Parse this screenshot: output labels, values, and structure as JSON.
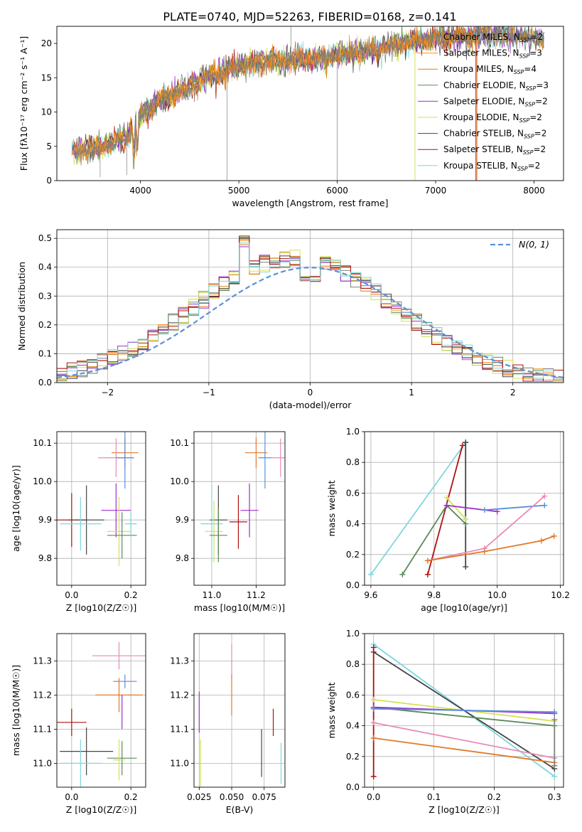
{
  "figure": {
    "title": "PLATE=0740, MJD=52263, FIBERID=0168, z=0.141"
  },
  "colors": {
    "chabrier_miles": "#7f7f7f",
    "salpeter_miles": "#ff8c1a",
    "kroupa_miles": "#d9821c",
    "chabrier_elodie": "#5a8a5a",
    "salpeter_elodie": "#9b30c8",
    "kroupa_elodie": "#d4e157",
    "chabrier_stelib": "#444444",
    "salpeter_stelib": "#b01010",
    "kroupa_stelib": "#7fd6dc",
    "normal_curve": "#5b8fd9",
    "miles_blue": "#5b8fd9",
    "pink": "#e88ab8",
    "orange": "#e07a2a"
  },
  "chart_data": [
    {
      "id": "spectrum",
      "type": "line",
      "xlabel": "wavelength [Angstrom, rest frame]",
      "ylabel": "Flux [fλ10⁻¹⁷ erg cm⁻² s⁻¹ A⁻¹]",
      "xlim": [
        3150,
        8300
      ],
      "ylim": [
        0,
        22.5
      ],
      "xticks": [
        4000,
        5000,
        6000,
        7000,
        8000
      ],
      "yticks": [
        0,
        5,
        10,
        15,
        20
      ],
      "legend_position": "top-right",
      "legend": [
        {
          "label": "Chabrier MILES, N",
          "sub": "SSP",
          "suffix": "=2",
          "color": "chabrier_miles"
        },
        {
          "label": "Salpeter MILES, N",
          "sub": "SSP",
          "suffix": "=3",
          "color": "salpeter_miles"
        },
        {
          "label": "Kroupa MILES, N",
          "sub": "SSP",
          "suffix": "=4",
          "color": "kroupa_miles"
        },
        {
          "label": "Chabrier ELODIE, N",
          "sub": "SSP",
          "suffix": "=3",
          "color": "chabrier_elodie"
        },
        {
          "label": "Salpeter ELODIE, N",
          "sub": "SSP",
          "suffix": "=2",
          "color": "salpeter_elodie"
        },
        {
          "label": "Kroupa ELODIE, N",
          "sub": "SSP",
          "suffix": "=2",
          "color": "kroupa_elodie"
        },
        {
          "label": "Chabrier STELIB, N",
          "sub": "SSP",
          "suffix": "=2",
          "color": "chabrier_stelib"
        },
        {
          "label": "Salpeter STELIB, N",
          "sub": "SSP",
          "suffix": "=2",
          "color": "salpeter_stelib"
        },
        {
          "label": "Kroupa STELIB, N",
          "sub": "SSP",
          "suffix": "=2",
          "color": "kroupa_stelib"
        }
      ],
      "continuum": [
        [
          3300,
          4.5
        ],
        [
          3500,
          4.6
        ],
        [
          3700,
          5.2
        ],
        [
          3900,
          7.0
        ],
        [
          4000,
          9.5
        ],
        [
          4200,
          11.5
        ],
        [
          4400,
          13.0
        ],
        [
          4600,
          14.5
        ],
        [
          4800,
          15.8
        ],
        [
          5000,
          16.8
        ],
        [
          5200,
          17.3
        ],
        [
          5400,
          17.5
        ],
        [
          5600,
          17.6
        ],
        [
          5800,
          17.9
        ],
        [
          6000,
          18.2
        ],
        [
          6200,
          18.6
        ],
        [
          6400,
          19.2
        ],
        [
          6600,
          19.8
        ],
        [
          6800,
          20.3
        ],
        [
          7000,
          20.8
        ],
        [
          7200,
          21.0
        ],
        [
          7400,
          21.2
        ],
        [
          7600,
          21.3
        ],
        [
          7800,
          21.2
        ],
        [
          8000,
          20.8
        ],
        [
          8100,
          20.5
        ]
      ]
    },
    {
      "id": "residuals",
      "type": "step",
      "xlabel": "(data-model)/error",
      "ylabel": "Normed distribution",
      "xlim": [
        -2.5,
        2.5
      ],
      "ylim": [
        0,
        0.53
      ],
      "xticks": [
        -2,
        -1,
        0,
        1,
        2
      ],
      "yticks": [
        0.0,
        0.1,
        0.2,
        0.3,
        0.4,
        0.5
      ],
      "legend_position": "top-right",
      "normal_label": "N(0, 1)",
      "bin_width": 0.1
    },
    {
      "id": "age_vs_Z",
      "type": "errorbar",
      "xlabel": "Z [log10(Z/Z☉)]",
      "ylabel": "age [log10(age/yr)]",
      "xlim": [
        -0.05,
        0.25
      ],
      "ylim": [
        9.73,
        10.13
      ],
      "xticks": [
        0.0,
        0.2
      ],
      "yticks": [
        9.8,
        9.9,
        10.0,
        10.1
      ],
      "points": [
        {
          "x": 0.18,
          "y": 10.075,
          "xerr": 0.045,
          "yerr": 0.04,
          "color": "orange"
        },
        {
          "x": 0.15,
          "y": 10.062,
          "xerr": 0.06,
          "yerr": 0.05,
          "color": "pink"
        },
        {
          "x": 0.18,
          "y": 10.062,
          "xerr": 0.03,
          "yerr": 0.08,
          "color": "miles_blue"
        },
        {
          "x": 0.0,
          "y": 9.9,
          "xerr": 0.05,
          "yerr": 0.07,
          "color": "salpeter_stelib"
        },
        {
          "x": 0.05,
          "y": 9.9,
          "xerr": 0.06,
          "yerr": 0.09,
          "color": "chabrier_stelib"
        },
        {
          "x": 0.03,
          "y": 9.89,
          "xerr": 0.07,
          "yerr": 0.07,
          "color": "kroupa_stelib"
        },
        {
          "x": 0.15,
          "y": 9.925,
          "xerr": 0.05,
          "yerr": 0.07,
          "color": "salpeter_elodie"
        },
        {
          "x": 0.16,
          "y": 9.87,
          "xerr": 0.04,
          "yerr": 0.09,
          "color": "kroupa_elodie"
        },
        {
          "x": 0.17,
          "y": 9.86,
          "xerr": 0.05,
          "yerr": 0.06,
          "color": "chabrier_elodie"
        },
        {
          "x": 0.2,
          "y": 9.89,
          "xerr": 0.02,
          "yerr": 0.03,
          "color": "kroupa_stelib"
        }
      ]
    },
    {
      "id": "age_vs_mass",
      "type": "errorbar",
      "xlabel": "mass [log10(M/M☉)]",
      "ylabel": "",
      "xlim": [
        10.92,
        11.33
      ],
      "ylim": [
        9.73,
        10.13
      ],
      "xticks": [
        11.0,
        11.2
      ],
      "yticks": [
        9.8,
        9.9,
        10.0,
        10.1
      ],
      "points": [
        {
          "x": 11.2,
          "y": 10.075,
          "xerr": 0.05,
          "yerr": 0.04,
          "color": "orange"
        },
        {
          "x": 11.31,
          "y": 10.062,
          "xerr": 0.04,
          "yerr": 0.05,
          "color": "pink"
        },
        {
          "x": 11.24,
          "y": 10.062,
          "xerr": 0.03,
          "yerr": 0.08,
          "color": "miles_blue"
        },
        {
          "x": 11.12,
          "y": 9.895,
          "xerr": 0.04,
          "yerr": 0.07,
          "color": "salpeter_stelib"
        },
        {
          "x": 11.03,
          "y": 9.9,
          "xerr": 0.04,
          "yerr": 0.09,
          "color": "chabrier_stelib"
        },
        {
          "x": 11.0,
          "y": 9.89,
          "xerr": 0.05,
          "yerr": 0.1,
          "color": "kroupa_stelib"
        },
        {
          "x": 11.17,
          "y": 9.925,
          "xerr": 0.04,
          "yerr": 0.07,
          "color": "salpeter_elodie"
        },
        {
          "x": 11.01,
          "y": 9.87,
          "xerr": 0.04,
          "yerr": 0.08,
          "color": "kroupa_elodie"
        },
        {
          "x": 11.03,
          "y": 9.86,
          "xerr": 0.04,
          "yerr": 0.07,
          "color": "chabrier_elodie"
        }
      ]
    },
    {
      "id": "weight_vs_age",
      "type": "line",
      "xlabel": "age [log10(age/yr)]",
      "ylabel": "mass weight",
      "xlim": [
        9.58,
        10.21
      ],
      "ylim": [
        0,
        1.0
      ],
      "xticks": [
        9.6,
        9.8,
        10.0,
        10.2
      ],
      "yticks": [
        0.0,
        0.2,
        0.4,
        0.6,
        0.8,
        1.0
      ],
      "series": [
        {
          "color": "kroupa_stelib",
          "points": [
            [
              9.6,
              0.07
            ],
            [
              9.9,
              0.93
            ]
          ]
        },
        {
          "color": "chabrier_stelib",
          "points": [
            [
              9.9,
              0.12
            ],
            [
              9.9,
              0.93
            ]
          ]
        },
        {
          "color": "salpeter_stelib",
          "points": [
            [
              9.78,
              0.07
            ],
            [
              9.89,
              0.91
            ]
          ]
        },
        {
          "color": "chabrier_elodie",
          "points": [
            [
              9.7,
              0.07
            ],
            [
              9.84,
              0.52
            ],
            [
              9.9,
              0.4
            ]
          ]
        },
        {
          "color": "kroupa_elodie",
          "points": [
            [
              9.84,
              0.57
            ],
            [
              9.9,
              0.43
            ]
          ]
        },
        {
          "color": "salpeter_elodie",
          "points": [
            [
              9.84,
              0.52
            ],
            [
              10.0,
              0.48
            ]
          ]
        },
        {
          "color": "miles_blue",
          "points": [
            [
              9.96,
              0.49
            ],
            [
              10.15,
              0.52
            ]
          ]
        },
        {
          "color": "pink",
          "points": [
            [
              9.78,
              0.16
            ],
            [
              9.96,
              0.24
            ],
            [
              10.15,
              0.58
            ]
          ]
        },
        {
          "color": "orange",
          "points": [
            [
              9.78,
              0.16
            ],
            [
              9.96,
              0.22
            ],
            [
              10.14,
              0.29
            ],
            [
              10.18,
              0.32
            ]
          ]
        }
      ]
    },
    {
      "id": "mass_vs_Z",
      "type": "errorbar",
      "xlabel": "Z [log10(Z/Z☉)]",
      "ylabel": "mass [log10(M/M☉)]",
      "xlim": [
        -0.05,
        0.25
      ],
      "ylim": [
        10.93,
        11.38
      ],
      "xticks": [
        0.0,
        0.2
      ],
      "yticks": [
        11.0,
        11.1,
        11.2,
        11.3
      ],
      "points": [
        {
          "x": 0.16,
          "y": 11.315,
          "xerr": 0.09,
          "yerr": 0.04,
          "color": "pink"
        },
        {
          "x": 0.18,
          "y": 11.24,
          "xerr": 0.04,
          "yerr": 0.02,
          "color": "miles_blue"
        },
        {
          "x": 0.16,
          "y": 11.2,
          "xerr": 0.08,
          "yerr": 0.05,
          "color": "orange"
        },
        {
          "x": 0.0,
          "y": 11.12,
          "xerr": 0.05,
          "yerr": 0.04,
          "color": "salpeter_stelib"
        },
        {
          "x": 0.17,
          "y": 11.15,
          "xerr": 0.0,
          "yerr": 0.05,
          "color": "salpeter_elodie"
        },
        {
          "x": 0.05,
          "y": 11.035,
          "xerr": 0.09,
          "yerr": 0.07,
          "color": "chabrier_stelib"
        },
        {
          "x": 0.17,
          "y": 11.015,
          "xerr": 0.05,
          "yerr": 0.05,
          "color": "chabrier_elodie"
        },
        {
          "x": 0.16,
          "y": 11.01,
          "xerr": 0.02,
          "yerr": 0.06,
          "color": "kroupa_elodie"
        },
        {
          "x": 0.03,
          "y": 11.0,
          "xerr": 0.07,
          "yerr": 0.07,
          "color": "kroupa_stelib"
        }
      ]
    },
    {
      "id": "mass_vs_ebv",
      "type": "errorbar",
      "xlabel": "E(B-V)",
      "ylabel": "",
      "xlim": [
        0.021,
        0.091
      ],
      "ylim": [
        10.93,
        11.38
      ],
      "xticks": [
        0.025,
        0.05,
        0.075
      ],
      "yticks": [
        11.0,
        11.1,
        11.2,
        11.3
      ],
      "points": [
        {
          "x": 0.05,
          "y": 11.3,
          "xerr": 0.0,
          "yerr": 0.05,
          "color": "pink"
        },
        {
          "x": 0.05,
          "y": 11.2,
          "xerr": 0.0,
          "yerr": 0.06,
          "color": "orange"
        },
        {
          "x": 0.025,
          "y": 11.15,
          "xerr": 0.0,
          "yerr": 0.06,
          "color": "salpeter_elodie"
        },
        {
          "x": 0.026,
          "y": 11.0,
          "xerr": 0.0,
          "yerr": 0.07,
          "color": "kroupa_elodie"
        },
        {
          "x": 0.082,
          "y": 11.12,
          "xerr": 0.0,
          "yerr": 0.04,
          "color": "salpeter_stelib"
        },
        {
          "x": 0.073,
          "y": 11.03,
          "xerr": 0.0,
          "yerr": 0.07,
          "color": "chabrier_stelib"
        },
        {
          "x": 0.088,
          "y": 11.0,
          "xerr": 0.0,
          "yerr": 0.06,
          "color": "kroupa_stelib"
        }
      ]
    },
    {
      "id": "weight_vs_Z",
      "type": "line",
      "xlabel": "Z [log10(Z/Z☉)]",
      "ylabel": "mass weight",
      "xlim": [
        -0.015,
        0.315
      ],
      "ylim": [
        0,
        1.0
      ],
      "xticks": [
        0.0,
        0.1,
        0.2,
        0.3
      ],
      "yticks": [
        0.0,
        0.2,
        0.4,
        0.6,
        0.8,
        1.0
      ],
      "series": [
        {
          "color": "kroupa_stelib",
          "points": [
            [
              0.0,
              0.93
            ],
            [
              0.3,
              0.07
            ]
          ]
        },
        {
          "color": "chabrier_stelib",
          "points": [
            [
              0.0,
              0.88
            ],
            [
              0.3,
              0.12
            ]
          ]
        },
        {
          "color": "salpeter_stelib",
          "points": [
            [
              0.0,
              0.07
            ],
            [
              0.0,
              0.91
            ]
          ]
        },
        {
          "color": "kroupa_elodie",
          "points": [
            [
              0.0,
              0.57
            ],
            [
              0.3,
              0.43
            ]
          ]
        },
        {
          "color": "chabrier_elodie",
          "points": [
            [
              0.0,
              0.52
            ],
            [
              0.3,
              0.4
            ]
          ]
        },
        {
          "color": "salpeter_elodie",
          "points": [
            [
              0.0,
              0.52
            ],
            [
              0.3,
              0.48
            ]
          ]
        },
        {
          "color": "miles_blue",
          "points": [
            [
              0.0,
              0.51
            ],
            [
              0.3,
              0.49
            ]
          ]
        },
        {
          "color": "pink",
          "points": [
            [
              0.0,
              0.42
            ],
            [
              0.3,
              0.19
            ]
          ]
        },
        {
          "color": "orange",
          "points": [
            [
              0.0,
              0.32
            ],
            [
              0.3,
              0.16
            ]
          ]
        },
        {
          "color": "chabrier_miles",
          "points": [
            [
              0.3,
              0.14
            ],
            [
              0.3,
              0.44
            ]
          ]
        }
      ]
    }
  ]
}
